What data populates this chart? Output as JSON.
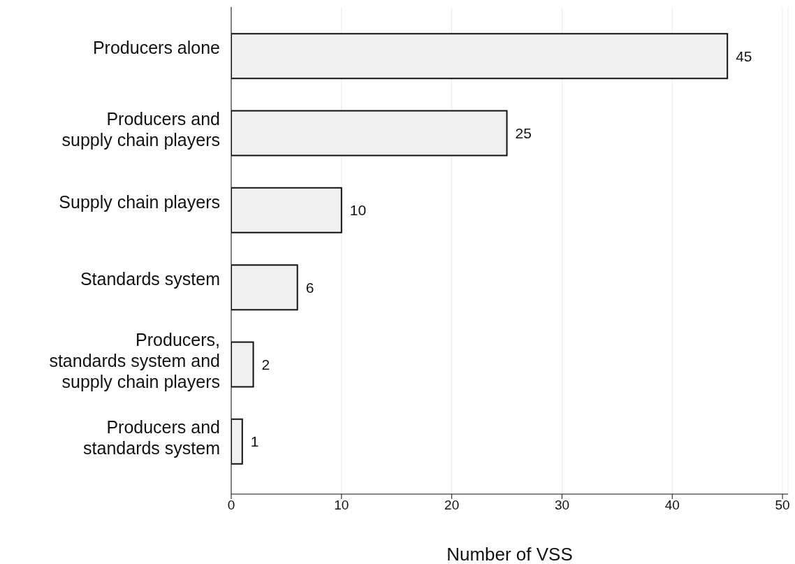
{
  "chart_data": {
    "type": "bar",
    "orientation": "horizontal",
    "xlabel": "Number of VSS",
    "categories": [
      "Producers alone",
      "Producers and\nsupply chain players",
      "Supply chain players",
      "Standards system",
      "Producers,\nstandards system and\nsupply chain players",
      "Producers and\nstandards system"
    ],
    "values": [
      45,
      25,
      10,
      6,
      2,
      1
    ],
    "color": "#f0f0f0",
    "xlim": [
      0,
      50.5
    ],
    "xticks": [
      0,
      10,
      20,
      30,
      40,
      50
    ],
    "grid": "x",
    "data_labels": true
  }
}
